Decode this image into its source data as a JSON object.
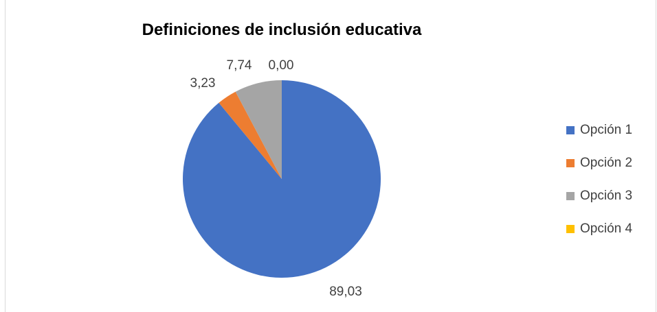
{
  "chart_data": {
    "type": "pie",
    "title": "Definiciones de inclusión educativa",
    "categories": [
      "Opción 1",
      "Opción 2",
      "Opción 3",
      "Opción 4"
    ],
    "values": [
      89.03,
      3.23,
      7.74,
      0.0
    ],
    "data_labels": [
      "89,03",
      "3,23",
      "7,74",
      "0,00"
    ],
    "colors": [
      "#4472C4",
      "#ED7D31",
      "#A5A5A5",
      "#FFC000"
    ],
    "legend_placement": "right"
  }
}
